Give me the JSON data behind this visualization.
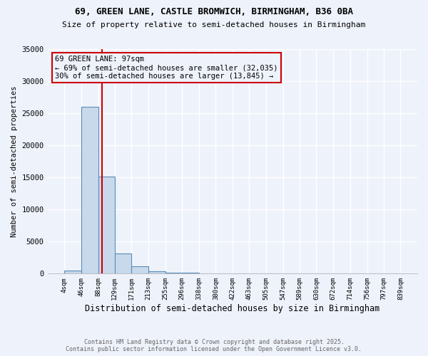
{
  "title_line1": "69, GREEN LANE, CASTLE BROMWICH, BIRMINGHAM, B36 0BA",
  "title_line2": "Size of property relative to semi-detached houses in Birmingham",
  "xlabel": "Distribution of semi-detached houses by size in Birmingham",
  "ylabel": "Number of semi-detached properties",
  "annotation_title": "69 GREEN LANE: 97sqm",
  "annotation_line2": "← 69% of semi-detached houses are smaller (32,035)",
  "annotation_line3": "30% of semi-detached houses are larger (13,845) →",
  "property_size": 97,
  "footer_line1": "Contains HM Land Registry data © Crown copyright and database right 2025.",
  "footer_line2": "Contains public sector information licensed under the Open Government Licence v3.0.",
  "bar_color": "#c8d9eb",
  "bar_edge_color": "#5b8db8",
  "redline_color": "#cc0000",
  "annotation_box_color": "#cc0000",
  "background_color": "#eef2fb",
  "grid_color": "#ffffff",
  "ylim": [
    0,
    35000
  ],
  "yticks": [
    0,
    5000,
    10000,
    15000,
    20000,
    25000,
    30000,
    35000
  ],
  "bin_edges": [
    4,
    46,
    88,
    129,
    171,
    213,
    255,
    296,
    338,
    380,
    422,
    463,
    505,
    547,
    589,
    630,
    672,
    714,
    756,
    797,
    839
  ],
  "bin_counts": [
    500,
    26000,
    15100,
    3200,
    1100,
    400,
    200,
    100,
    50,
    20,
    10,
    5,
    3,
    2,
    1,
    1,
    1,
    1,
    1,
    1
  ]
}
